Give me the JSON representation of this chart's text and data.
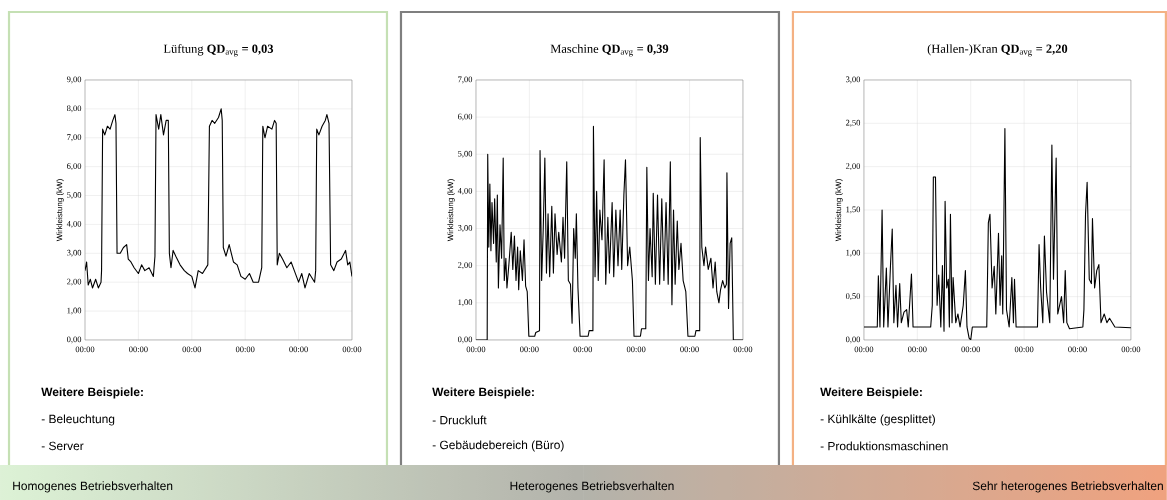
{
  "chart_data": [
    {
      "type": "line",
      "title": "Lüftung **QD**$_{avg}$ **= 0,03**",
      "ylabel": "Wirkleistung (kW)",
      "grid": true,
      "xlim": [
        0,
        5
      ],
      "xticks": [
        {
          "value": 0,
          "label": "00:00"
        },
        {
          "value": 1,
          "label": "00:00"
        },
        {
          "value": 2,
          "label": "00:00"
        },
        {
          "value": 3,
          "label": "00:00"
        },
        {
          "value": 4,
          "label": "00:00"
        },
        {
          "value": 5,
          "label": "00:00"
        }
      ],
      "ylim": [
        0,
        9
      ],
      "yticks": [
        {
          "value": 0,
          "label": "0,00"
        },
        {
          "value": 1,
          "label": "1,00"
        },
        {
          "value": 2,
          "label": "2,00"
        },
        {
          "value": 3,
          "label": "3,00"
        },
        {
          "value": 4,
          "label": "4,00"
        },
        {
          "value": 5,
          "label": "5,00"
        },
        {
          "value": 6,
          "label": "6,00"
        },
        {
          "value": 7,
          "label": "7,00"
        },
        {
          "value": 8,
          "label": "8,00"
        },
        {
          "value": 9,
          "label": "9,00"
        }
      ],
      "x": [
        0,
        0.03,
        0.06,
        0.1,
        0.14,
        0.2,
        0.25,
        0.3,
        0.31,
        0.33,
        0.37,
        0.42,
        0.47,
        0.52,
        0.56,
        0.58,
        0.6,
        0.66,
        0.72,
        0.78,
        0.81,
        0.86,
        0.92,
        1.0,
        1.06,
        1.12,
        1.2,
        1.28,
        1.31,
        1.33,
        1.38,
        1.42,
        1.47,
        1.52,
        1.56,
        1.58,
        1.61,
        1.65,
        1.7,
        1.78,
        1.86,
        1.92,
        2.0,
        2.06,
        2.12,
        2.2,
        2.3,
        2.33,
        2.38,
        2.43,
        2.5,
        2.55,
        2.57,
        2.59,
        2.64,
        2.7,
        2.78,
        2.85,
        2.92,
        3.0,
        3.08,
        3.15,
        3.25,
        3.31,
        3.33,
        3.37,
        3.42,
        3.5,
        3.55,
        3.58,
        3.6,
        3.64,
        3.7,
        3.78,
        3.86,
        3.92,
        4.0,
        4.06,
        4.12,
        4.2,
        4.3,
        4.32,
        4.34,
        4.38,
        4.44,
        4.5,
        4.53,
        4.57,
        4.6,
        4.66,
        4.72,
        4.8,
        4.88,
        4.92,
        4.96,
        5.0
      ],
      "series": [
        {
          "color": "#000000",
          "values": [
            2.4,
            2.7,
            1.9,
            2.1,
            1.8,
            2.1,
            1.8,
            2.0,
            2.4,
            7.3,
            7.1,
            7.4,
            7.3,
            7.6,
            7.8,
            7.5,
            3.0,
            3.0,
            3.2,
            3.3,
            2.8,
            2.7,
            2.5,
            2.3,
            2.6,
            2.4,
            2.5,
            2.2,
            2.9,
            7.8,
            7.3,
            7.8,
            7.1,
            7.6,
            7.6,
            3.0,
            2.5,
            3.1,
            2.9,
            2.6,
            2.4,
            2.3,
            2.2,
            1.8,
            2.4,
            2.3,
            2.6,
            7.4,
            7.6,
            7.5,
            7.7,
            8.0,
            7.6,
            3.2,
            2.9,
            3.3,
            2.7,
            2.6,
            2.2,
            2.1,
            2.3,
            2.0,
            2.0,
            2.5,
            7.4,
            7.0,
            7.4,
            7.3,
            7.6,
            7.5,
            2.6,
            3.0,
            2.8,
            2.5,
            2.7,
            2.4,
            2.0,
            2.3,
            1.8,
            2.3,
            2.0,
            2.4,
            7.3,
            7.1,
            7.4,
            7.6,
            7.8,
            7.5,
            2.6,
            2.4,
            2.7,
            2.8,
            3.1,
            2.6,
            2.7,
            2.2
          ]
        }
      ],
      "annotations": [
        "Weitere Beispiele:",
        "- Beleuchtung",
        "- Server",
        "Homogenes Betriebsverhalten"
      ]
    },
    {
      "type": "line",
      "title": "Maschine **QD**$_{avg}$ **= 0,39**",
      "ylabel": "Wirkleistung (kW)",
      "grid": true,
      "xlim": [
        0,
        5
      ],
      "xticks": [
        {
          "value": 0,
          "label": "00:00"
        },
        {
          "value": 1,
          "label": "00:00"
        },
        {
          "value": 2,
          "label": "00:00"
        },
        {
          "value": 3,
          "label": "00:00"
        },
        {
          "value": 4,
          "label": "00:00"
        },
        {
          "value": 5,
          "label": "00:00"
        }
      ],
      "ylim": [
        0,
        7
      ],
      "yticks": [
        {
          "value": 0,
          "label": "0,00"
        },
        {
          "value": 1,
          "label": "1,00"
        },
        {
          "value": 2,
          "label": "2,00"
        },
        {
          "value": 3,
          "label": "3,00"
        },
        {
          "value": 4,
          "label": "4,00"
        },
        {
          "value": 5,
          "label": "5,00"
        },
        {
          "value": 6,
          "label": "6,00"
        },
        {
          "value": 7,
          "label": "7,00"
        }
      ],
      "x": [
        0,
        0.21,
        0.22,
        0.24,
        0.26,
        0.28,
        0.3,
        0.33,
        0.35,
        0.38,
        0.4,
        0.42,
        0.45,
        0.48,
        0.5,
        0.51,
        0.53,
        0.56,
        0.58,
        0.62,
        0.66,
        0.69,
        0.72,
        0.75,
        0.78,
        0.8,
        0.83,
        0.87,
        0.9,
        0.93,
        0.96,
        0.99,
        1.1,
        1.12,
        1.19,
        1.2,
        1.23,
        1.26,
        1.29,
        1.32,
        1.35,
        1.38,
        1.42,
        1.45,
        1.48,
        1.52,
        1.55,
        1.6,
        1.63,
        1.66,
        1.7,
        1.73,
        1.77,
        1.8,
        1.83,
        1.86,
        1.88,
        1.91,
        1.95,
        2.1,
        2.12,
        2.19,
        2.2,
        2.23,
        2.26,
        2.29,
        2.32,
        2.36,
        2.4,
        2.43,
        2.47,
        2.5,
        2.55,
        2.58,
        2.62,
        2.66,
        2.7,
        2.73,
        2.77,
        2.8,
        2.84,
        2.88,
        2.93,
        2.96,
        3.08,
        3.1,
        3.18,
        3.2,
        3.23,
        3.26,
        3.3,
        3.32,
        3.36,
        3.4,
        3.44,
        3.48,
        3.52,
        3.56,
        3.6,
        3.64,
        3.67,
        3.7,
        3.73,
        3.77,
        3.8,
        3.84,
        3.88,
        3.93,
        3.97,
        4.1,
        4.12,
        4.19,
        4.2,
        4.23,
        4.27,
        4.3,
        4.35,
        4.4,
        4.44,
        4.48,
        4.51,
        4.55,
        4.58,
        4.62,
        4.66,
        4.69,
        4.7,
        4.73,
        4.76,
        4.79,
        4.82,
        5
      ],
      "series": [
        {
          "color": "#000000",
          "values": [
            0,
            0,
            5.0,
            2.5,
            4.2,
            2.4,
            3.7,
            2.6,
            3.8,
            2.1,
            3.9,
            1.4,
            3.1,
            2.2,
            4.0,
            4.9,
            1.6,
            2.2,
            1.4,
            2.1,
            2.9,
            1.9,
            2.8,
            1.6,
            2.5,
            1.35,
            2.4,
            1.6,
            2.7,
            1.45,
            1.3,
            0.1,
            0.1,
            0.2,
            0.25,
            5.1,
            1.6,
            3.0,
            4.9,
            1.8,
            3.4,
            1.7,
            3.6,
            1.8,
            3.4,
            2.3,
            2.9,
            2.1,
            3.3,
            2.2,
            4.8,
            1.6,
            1.5,
            0.45,
            3.0,
            2.2,
            3.4,
            1.4,
            0.1,
            0.1,
            0.25,
            0.25,
            5.75,
            1.7,
            4.0,
            1.6,
            3.5,
            2.7,
            4.85,
            1.5,
            3.3,
            1.8,
            3.7,
            1.7,
            3.5,
            2.0,
            3.5,
            1.9,
            3.9,
            4.85,
            2.0,
            2.5,
            1.6,
            0.1,
            0.1,
            0.3,
            0.3,
            4.65,
            1.6,
            3.0,
            1.7,
            3.95,
            1.5,
            3.9,
            1.5,
            3.8,
            1.6,
            3.7,
            1.5,
            4.8,
            0.95,
            3.5,
            1.5,
            3.2,
            1.9,
            2.6,
            1.6,
            1.3,
            0.1,
            0.1,
            0.25,
            0.25,
            5.45,
            2.5,
            2.0,
            2.5,
            1.9,
            2.2,
            1.4,
            2.1,
            1.3,
            1.0,
            1.35,
            1.6,
            1.4,
            1.5,
            4.5,
            0.85,
            2.6,
            2.75,
            0,
            0
          ]
        }
      ],
      "annotations": [
        "Weitere Beispiele:",
        "- Druckluft",
        "- Gebäudebereich (Büro)",
        "Heterogenes Betriebsverhalten"
      ]
    },
    {
      "type": "line",
      "title": "(Hallen-)Kran **QD**$_{avg}$ **= 2,20**",
      "ylabel": "Wirkleistung (kW)",
      "grid": true,
      "xlim": [
        0,
        5
      ],
      "xticks": [
        {
          "value": 0,
          "label": "00:00"
        },
        {
          "value": 1,
          "label": "00:00"
        },
        {
          "value": 2,
          "label": "00:00"
        },
        {
          "value": 3,
          "label": "00:00"
        },
        {
          "value": 4,
          "label": "00:00"
        },
        {
          "value": 5,
          "label": "00:00"
        }
      ],
      "ylim": [
        0,
        3
      ],
      "yticks": [
        {
          "value": 0,
          "label": "0,00"
        },
        {
          "value": 0.5,
          "label": "0,50"
        },
        {
          "value": 1,
          "label": "1,00"
        },
        {
          "value": 1.5,
          "label": "1,50"
        },
        {
          "value": 2,
          "label": "2,00"
        },
        {
          "value": 2.5,
          "label": "2,50"
        },
        {
          "value": 3,
          "label": "3,00"
        }
      ],
      "x": [
        0,
        0.25,
        0.27,
        0.3,
        0.34,
        0.37,
        0.42,
        0.45,
        0.5,
        0.53,
        0.56,
        0.6,
        0.63,
        0.67,
        0.7,
        0.75,
        0.8,
        0.83,
        0.89,
        0.92,
        1.0,
        1.25,
        1.28,
        1.3,
        1.34,
        1.37,
        1.4,
        1.44,
        1.47,
        1.5,
        1.52,
        1.55,
        1.58,
        1.6,
        1.62,
        1.65,
        1.67,
        1.72,
        1.76,
        1.8,
        1.86,
        1.9,
        1.93,
        1.97,
        2.0,
        2.03,
        2.3,
        2.33,
        2.36,
        2.4,
        2.44,
        2.47,
        2.52,
        2.55,
        2.58,
        2.6,
        2.64,
        2.67,
        2.72,
        2.77,
        2.8,
        2.82,
        2.85,
        3.0,
        3.25,
        3.28,
        3.31,
        3.35,
        3.38,
        3.42,
        3.48,
        3.52,
        3.55,
        3.6,
        3.63,
        3.7,
        3.74,
        3.77,
        3.8,
        3.85,
        4.1,
        4.12,
        4.15,
        4.18,
        4.22,
        4.26,
        4.28,
        4.32,
        4.36,
        4.4,
        4.44,
        4.5,
        4.55,
        4.6,
        4.7,
        5
      ],
      "series": [
        {
          "color": "#000000",
          "values": [
            0.15,
            0.15,
            0.74,
            0.15,
            1.5,
            0.15,
            0.83,
            0.15,
            0.9,
            1.28,
            0.2,
            0.63,
            0.15,
            0.65,
            0.2,
            0.32,
            0.35,
            0.15,
            0.76,
            0.15,
            0.15,
            0.15,
            0.4,
            1.88,
            1.88,
            0.4,
            0.75,
            0.15,
            0.86,
            0.1,
            1.6,
            0.6,
            0.7,
            0.15,
            1.45,
            0.2,
            0.72,
            0.2,
            0.3,
            0.15,
            0.4,
            0.8,
            0.15,
            0.02,
            0,
            0.15,
            0.15,
            1.35,
            1.45,
            0.6,
            0.85,
            0.3,
            1.23,
            0.4,
            0.97,
            0.3,
            2.44,
            0.35,
            0.15,
            0.72,
            0.2,
            0.7,
            0.15,
            0.15,
            0.15,
            1.1,
            0.6,
            0.2,
            1.2,
            0.55,
            0.2,
            2.25,
            0.7,
            2.1,
            0.3,
            0.5,
            0.2,
            0.8,
            0.2,
            0.13,
            0.15,
            0.35,
            1.45,
            1.82,
            0.7,
            0.65,
            1.4,
            0.6,
            0.8,
            0.87,
            0.2,
            0.3,
            0.2,
            0.25,
            0.15,
            0.14
          ]
        }
      ],
      "annotations": [
        "Weitere Beispiele:",
        "- Kühlkälte (gesplittet)",
        "- Produktionsmaschinen",
        "Sehr heterogenes Betriebsverhalten"
      ]
    }
  ]
}
